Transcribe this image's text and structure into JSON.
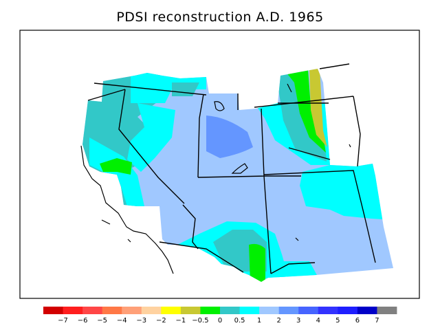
{
  "title": "PDSI reconstruction A.D. 1965",
  "legend": {
    "colors": [
      "#d20000",
      "#ff1e1e",
      "#ff4646",
      "#ff7846",
      "#ffa078",
      "#ffd2a0",
      "#ffff00",
      "#c8c832",
      "#00f000",
      "#32c8c8",
      "#00ffff",
      "#a0c8ff",
      "#6496ff",
      "#4664ff",
      "#3232ff",
      "#1e1eff",
      "#0000c8",
      "#808080"
    ],
    "labels": [
      "−7",
      "−6",
      "−5",
      "−4",
      "−3",
      "−2",
      "−1",
      "−0.5",
      "0",
      "0.5",
      "1",
      "2",
      "3",
      "4",
      "5",
      "6",
      "7"
    ]
  }
}
